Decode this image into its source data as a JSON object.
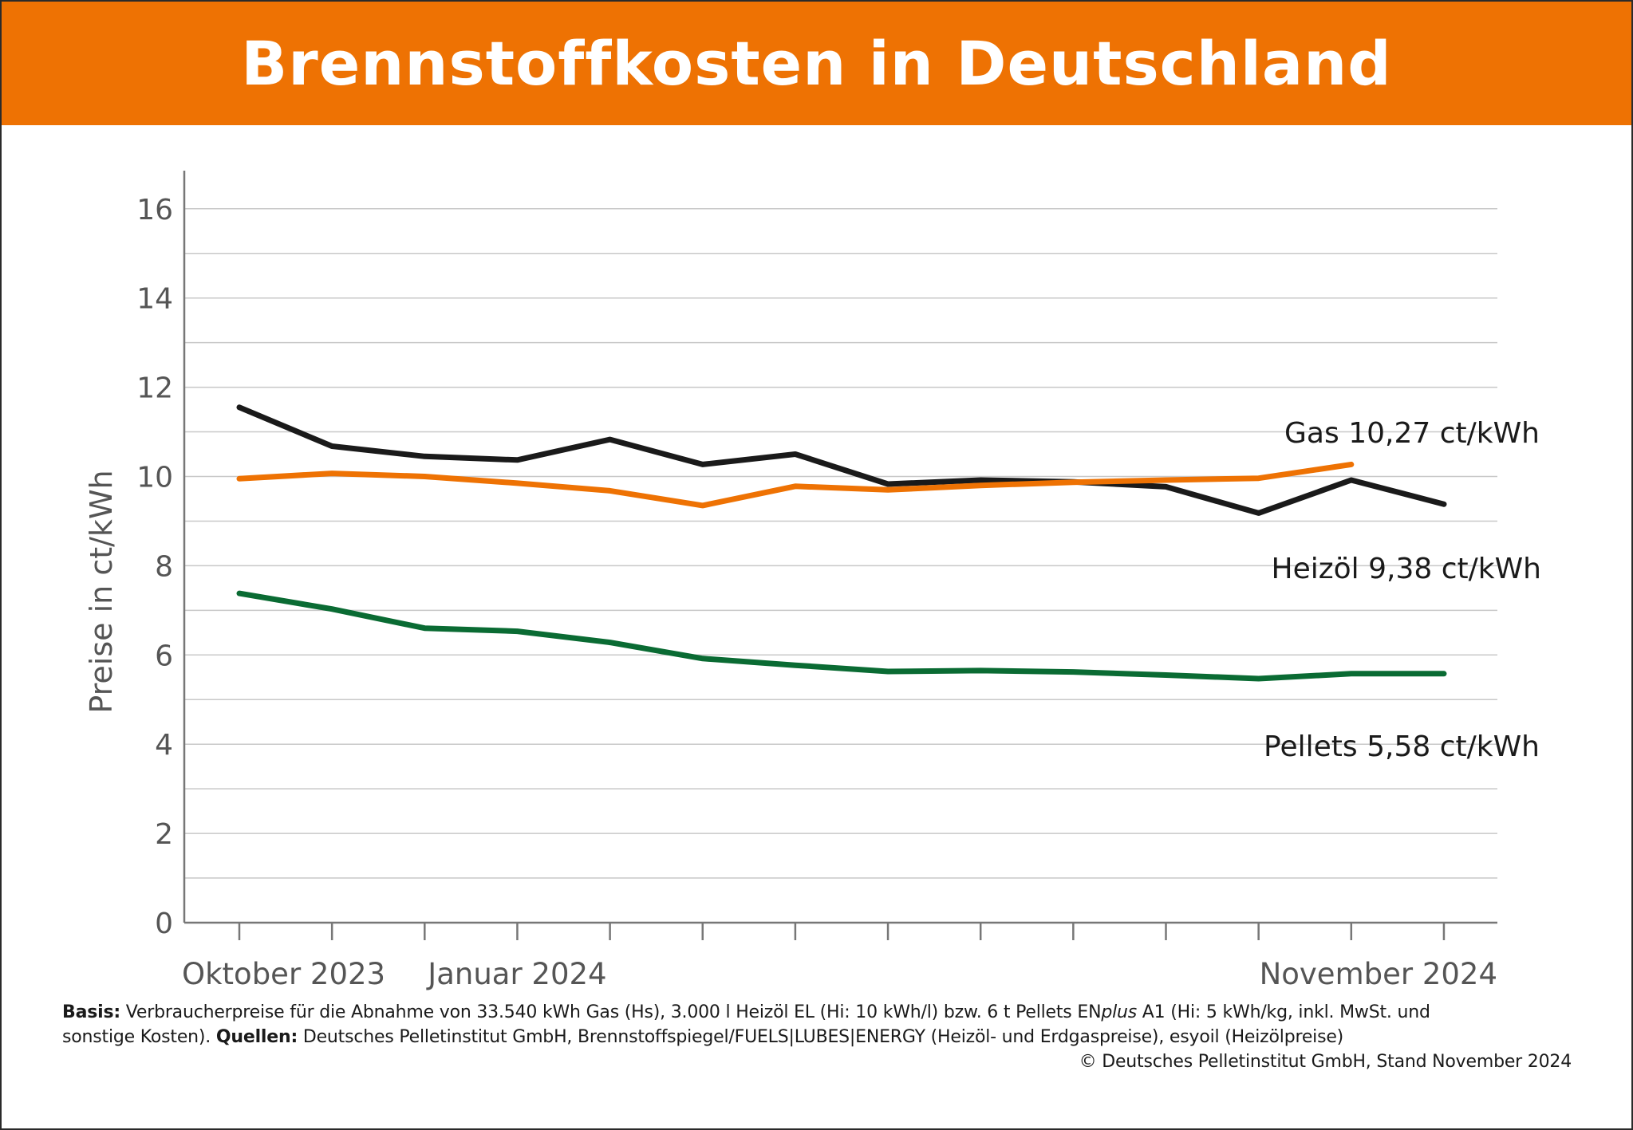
{
  "colors": {
    "accent": "#ee7203",
    "gas": "#ee7203",
    "heizoel": "#1a1a1a",
    "pellets": "#0a6b33",
    "grid": "#c8c8c8"
  },
  "header": {
    "title": "Brennstoffkosten in Deutschland"
  },
  "chart_data": {
    "type": "line",
    "title": "Brennstoffkosten in Deutschland",
    "ylabel": "Preise in ct/kWh",
    "xlabel": "",
    "ylim": [
      0,
      17
    ],
    "yticks": [
      0,
      2,
      4,
      6,
      8,
      10,
      12,
      14,
      16
    ],
    "grid": true,
    "x": [
      "Oktober 2023",
      "",
      "",
      "Januar 2024",
      "",
      "",
      "",
      "",
      "",
      "",
      "",
      "",
      "",
      "November 2024"
    ],
    "xtick_labels": [
      {
        "index": 0,
        "text": "Oktober 2023"
      },
      {
        "index": 3,
        "text": "Januar 2024"
      },
      {
        "index": 13,
        "text": "November 2024"
      }
    ],
    "series": [
      {
        "name": "Heizöl",
        "color": "#1a1a1a",
        "values": [
          11.55,
          10.68,
          10.45,
          10.37,
          10.83,
          10.27,
          10.5,
          9.83,
          9.92,
          9.88,
          9.77,
          9.18,
          9.92,
          9.38
        ],
        "end_label": {
          "name": "Heizöl",
          "value": "9,38 ct/kWh"
        }
      },
      {
        "name": "Gas",
        "color": "#ee7203",
        "values": [
          9.95,
          10.07,
          10.0,
          9.85,
          9.68,
          9.35,
          9.78,
          9.7,
          9.8,
          9.87,
          9.92,
          9.96,
          10.27,
          null
        ],
        "end_label": {
          "name": "Gas",
          "value": "10,27 ct/kWh"
        }
      },
      {
        "name": "Pellets",
        "color": "#0a6b33",
        "values": [
          7.38,
          7.03,
          6.6,
          6.53,
          6.28,
          5.92,
          5.77,
          5.63,
          5.65,
          5.62,
          5.55,
          5.47,
          5.58,
          5.58
        ],
        "end_label": {
          "name": "Pellets",
          "value": "5,58 ct/kWh"
        }
      }
    ]
  },
  "footer": {
    "basis_label": "Basis:",
    "basis_text": "Verbraucherpreise für die Abnahme von 33.540 kWh Gas (Hs), 3.000 l Heizöl EL (Hi: 10 kWh/l) bzw. 6 t Pellets EN",
    "basis_italic": "plus",
    "basis_text_2": " A1 (Hi: 5 kWh/kg, inkl. MwSt. und",
    "basis_text_3": "sonstige Kosten). ",
    "sources_label": "Quellen:",
    "sources_text": " Deutsches Pelletinstitut GmbH, Brennstoffspiegel/FUELS|LUBES|ENERGY (Heizöl- und Erdgaspreise), esyoil (Heizölpreise)",
    "copyright": "© Deutsches Pelletinstitut GmbH, Stand November 2024"
  }
}
